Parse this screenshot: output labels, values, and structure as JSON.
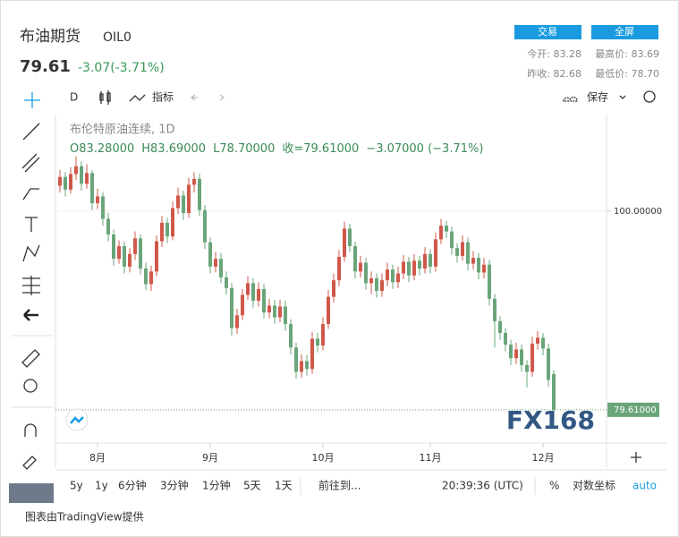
{
  "header": {
    "title": "布油期货",
    "symbol": "OIL0",
    "price": "79.61",
    "change": "-3.07(-3.71%)",
    "buttons": [
      "交易",
      "全屏"
    ],
    "stats": [
      "今开: 83.28",
      "最高价: 83.69",
      "昨收: 82.68",
      "最低价: 78.70"
    ]
  },
  "toolbar": {
    "interval": "D",
    "indicators": "指标",
    "save": "保存"
  },
  "legend": {
    "series_name": "布伦特原油连续, 1D",
    "ohlc": [
      "O83.28000",
      "H83.69000",
      "L78.70000",
      "收=79.61000",
      "−3.07000 (−3.71%)"
    ]
  },
  "watermark": "FX168",
  "chart_data": {
    "type": "candlestick",
    "up_color": "#d0584a",
    "down_color": "#6aa57a",
    "categories": [
      null,
      null,
      null,
      null,
      null,
      null,
      null,
      "8月",
      null,
      null,
      null,
      null,
      null,
      null,
      null,
      null,
      null,
      null,
      null,
      null,
      null,
      null,
      null,
      null,
      null,
      null,
      null,
      null,
      "9月",
      null,
      null,
      null,
      null,
      null,
      null,
      null,
      null,
      null,
      null,
      null,
      null,
      null,
      null,
      null,
      null,
      null,
      null,
      null,
      null,
      "10月",
      null,
      null,
      null,
      null,
      null,
      null,
      null,
      null,
      null,
      null,
      null,
      null,
      null,
      null,
      null,
      null,
      null,
      null,
      null,
      "11月",
      null,
      null,
      null,
      null,
      null,
      null,
      null,
      null,
      null,
      null,
      null,
      null,
      null,
      null,
      null,
      null,
      null,
      null,
      null,
      null,
      "12月",
      null,
      null
    ],
    "open": [
      102.6,
      103.5,
      102.2,
      103.8,
      104.6,
      102.8,
      103.9,
      100.8,
      101.5,
      99.2,
      97.6,
      95.1,
      96.4,
      94.3,
      95.6,
      97.2,
      94.1,
      92.5,
      93.8,
      96.9,
      98.8,
      97.4,
      100.3,
      101.6,
      99.8,
      102.7,
      103.3,
      100.1,
      96.8,
      94.3,
      95.1,
      93.2,
      92.1,
      88.0,
      89.3,
      91.4,
      92.6,
      90.8,
      92.0,
      89.6,
      90.3,
      89.1,
      90.2,
      88.4,
      86.0,
      83.5,
      84.6,
      83.8,
      86.9,
      86.2,
      88.4,
      91.2,
      92.9,
      95.3,
      98.2,
      96.4,
      93.8,
      94.7,
      92.6,
      93.1,
      91.8,
      92.9,
      94.0,
      92.7,
      93.6,
      94.8,
      93.4,
      94.9,
      94.1,
      95.6,
      94.3,
      97.1,
      98.5,
      97.9,
      96.2,
      95.4,
      96.8,
      94.6,
      95.2,
      93.7,
      94.5,
      91.0,
      88.7,
      87.5,
      86.3,
      84.9,
      85.8,
      84.2,
      83.5,
      86.4,
      87.0,
      85.9,
      83.28
    ],
    "high": [
      104.2,
      104.0,
      104.5,
      105.6,
      105.1,
      104.8,
      104.2,
      102.3,
      101.9,
      99.8,
      98.1,
      97.0,
      96.9,
      96.2,
      97.9,
      97.6,
      94.7,
      94.4,
      97.5,
      99.5,
      99.3,
      101.0,
      102.4,
      102.1,
      103.4,
      104.0,
      103.8,
      100.6,
      97.3,
      95.8,
      95.7,
      93.8,
      92.6,
      90.0,
      92.0,
      93.3,
      93.1,
      92.7,
      92.5,
      91.0,
      90.9,
      90.9,
      90.8,
      88.9,
      86.5,
      85.3,
      85.2,
      87.6,
      87.5,
      89.1,
      91.9,
      93.6,
      96.0,
      98.9,
      98.7,
      96.9,
      95.4,
      95.2,
      93.8,
      93.6,
      93.6,
      94.7,
      94.5,
      94.3,
      95.5,
      95.3,
      95.6,
      95.4,
      96.3,
      96.1,
      97.8,
      99.2,
      99.0,
      98.4,
      96.7,
      97.5,
      97.3,
      95.9,
      95.7,
      95.2,
      95.0,
      91.5,
      89.2,
      88.0,
      86.8,
      86.5,
      86.3,
      84.7,
      87.1,
      87.7,
      87.5,
      86.4,
      83.69
    ],
    "low": [
      101.9,
      101.5,
      101.8,
      103.2,
      102.1,
      102.3,
      100.1,
      100.2,
      98.5,
      96.9,
      94.4,
      94.6,
      93.6,
      93.7,
      95.0,
      93.5,
      91.9,
      91.8,
      93.3,
      96.3,
      96.7,
      97.0,
      99.7,
      99.1,
      99.3,
      101.9,
      99.5,
      96.1,
      93.6,
      93.7,
      92.6,
      91.4,
      87.2,
      87.4,
      88.8,
      90.9,
      90.1,
      90.2,
      89.0,
      89.0,
      88.4,
      88.6,
      87.7,
      85.3,
      82.8,
      82.9,
      83.1,
      83.3,
      85.5,
      85.7,
      87.9,
      90.6,
      92.3,
      94.8,
      95.8,
      93.1,
      93.2,
      91.9,
      91.5,
      91.1,
      91.2,
      92.3,
      92.0,
      92.1,
      93.0,
      92.7,
      92.9,
      93.4,
      93.6,
      93.6,
      93.8,
      96.6,
      97.2,
      95.5,
      94.7,
      94.9,
      93.9,
      94.0,
      93.0,
      93.1,
      90.3,
      86.0,
      86.8,
      85.6,
      84.2,
      84.3,
      83.5,
      81.9,
      83.0,
      85.8,
      85.2,
      82.0,
      78.7
    ],
    "close": [
      103.5,
      102.2,
      103.8,
      104.6,
      102.8,
      103.9,
      100.8,
      101.5,
      99.2,
      97.6,
      95.1,
      96.4,
      94.3,
      95.6,
      97.2,
      94.1,
      92.5,
      93.8,
      96.9,
      98.8,
      97.4,
      100.3,
      101.6,
      99.8,
      102.7,
      103.3,
      100.1,
      96.8,
      94.3,
      95.1,
      93.2,
      92.1,
      88.0,
      89.3,
      91.4,
      92.6,
      90.8,
      92.0,
      89.6,
      90.3,
      89.1,
      90.2,
      88.4,
      86.0,
      83.5,
      84.6,
      83.8,
      86.9,
      86.2,
      88.4,
      91.2,
      92.9,
      95.3,
      98.2,
      96.4,
      93.8,
      94.7,
      92.6,
      93.1,
      91.8,
      92.9,
      94.0,
      92.7,
      93.6,
      94.8,
      93.4,
      94.9,
      94.1,
      95.6,
      94.3,
      97.1,
      98.5,
      97.9,
      96.2,
      95.4,
      96.8,
      94.6,
      95.2,
      93.7,
      94.5,
      91.0,
      88.7,
      87.5,
      86.3,
      84.9,
      85.8,
      84.2,
      83.5,
      86.4,
      87.0,
      85.9,
      82.68,
      79.61
    ],
    "ylim": [
      76.2,
      109.9
    ],
    "yticks": [
      {
        "value": 100,
        "label": "100.00000"
      }
    ],
    "price_line": {
      "value": 79.61,
      "label": "79.61000",
      "color": "#6aa57a"
    }
  },
  "bottom_bar": {
    "ranges": [
      "5y",
      "1y",
      "6分钟",
      "3分钟",
      "1分钟",
      "5天",
      "1天"
    ],
    "goto": "前往到...",
    "time": "20:39:36 (UTC)",
    "percent": "%",
    "log": "对数坐标",
    "auto": "auto"
  },
  "footer": "图表由TradingView提供"
}
